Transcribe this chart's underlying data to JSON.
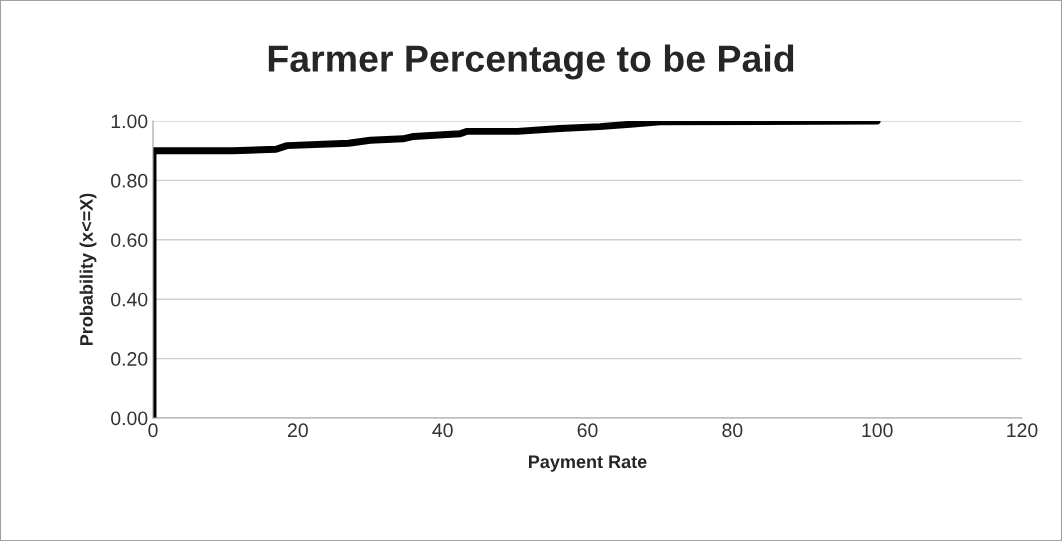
{
  "chart_data": {
    "type": "line",
    "title": "Farmer Percentage to be Paid",
    "xlabel": "Payment Rate",
    "ylabel": "Probability (x<=X)",
    "series": [
      {
        "color": "#000000",
        "x": [
          0,
          0,
          11,
          17,
          18.5,
          27,
          30,
          34.5,
          36,
          42.4,
          43.3,
          50.3,
          56.2,
          61.7,
          65.9,
          70,
          100
        ],
        "values": [
          0,
          0.9,
          0.9,
          0.905,
          0.917,
          0.925,
          0.935,
          0.94,
          0.948,
          0.957,
          0.965,
          0.965,
          0.975,
          0.981,
          0.989,
          0.997,
          1.0
        ]
      }
    ],
    "xlim": [
      0,
      120
    ],
    "xticks": [
      0,
      20,
      40,
      60,
      80,
      100,
      120
    ],
    "ylim": [
      0,
      1
    ],
    "yticks": [
      {
        "value": 0,
        "label": "0.00"
      },
      {
        "value": 0.2,
        "label": "0.20"
      },
      {
        "value": 0.4,
        "label": "0.40"
      },
      {
        "value": 0.6,
        "label": "0.60"
      },
      {
        "value": 0.8,
        "label": "0.80"
      },
      {
        "value": 1,
        "label": "1.00"
      }
    ],
    "grid": "y",
    "marker": "none",
    "line_style": "solid"
  }
}
